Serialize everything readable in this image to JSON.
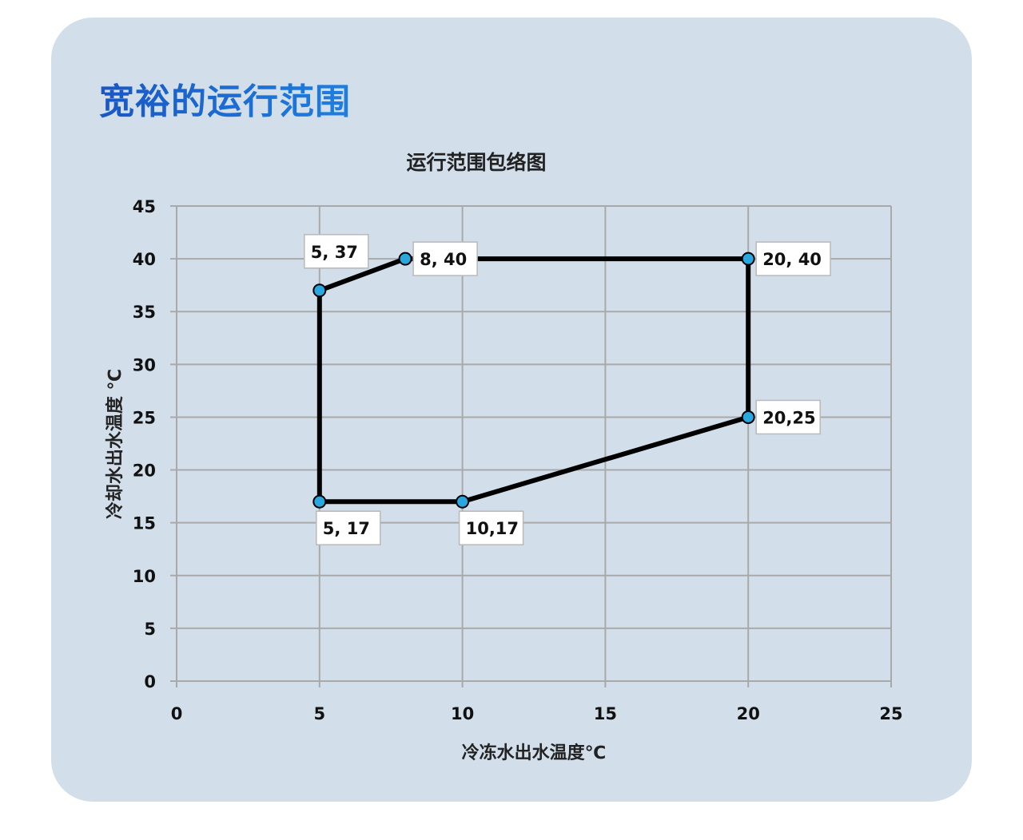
{
  "page": {
    "heading": "宽裕的运行范围"
  },
  "chart_data": {
    "type": "line",
    "title": "运行范围包络图",
    "xlabel": "冷冻水出水温度℃",
    "ylabel": "冷却水出水温度 ℃",
    "xlim": [
      0,
      25
    ],
    "ylim": [
      0,
      45
    ],
    "xticks": [
      0,
      5,
      10,
      15,
      20,
      25
    ],
    "yticks": [
      0,
      5,
      10,
      15,
      20,
      25,
      30,
      35,
      40,
      45
    ],
    "grid": true,
    "closed": true,
    "series": [
      {
        "points": [
          {
            "x": 5,
            "y": 37,
            "label": "5, 37",
            "label_pos": "above"
          },
          {
            "x": 8,
            "y": 40,
            "label": "8, 40",
            "label_pos": "right"
          },
          {
            "x": 20,
            "y": 40,
            "label": "20, 40",
            "label_pos": "right"
          },
          {
            "x": 20,
            "y": 25,
            "label": "20,25",
            "label_pos": "right"
          },
          {
            "x": 10,
            "y": 17,
            "label": "10,17",
            "label_pos": "below"
          },
          {
            "x": 5,
            "y": 17,
            "label": "5, 17",
            "label_pos": "below"
          }
        ]
      }
    ],
    "colors": {
      "line": "#000000",
      "marker": "#29a8e0",
      "grid": "#a9a9a9"
    }
  }
}
